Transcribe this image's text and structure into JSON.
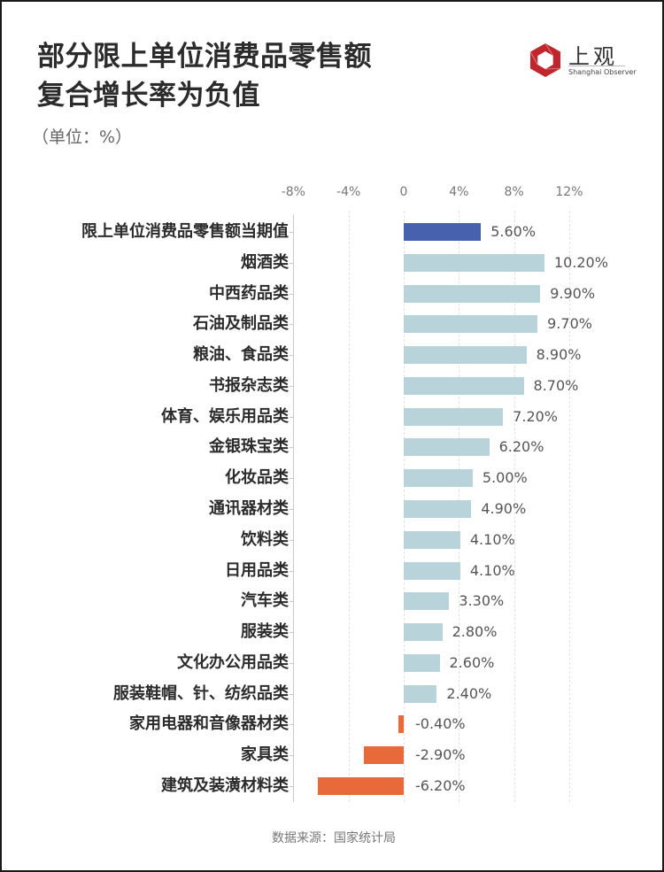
{
  "header": {
    "title_line1": "部分限上单位消费品零售额",
    "title_line2": "复合增长率为负值",
    "unit": "（单位：%）"
  },
  "logo": {
    "name_cn": "上观",
    "name_en": "Shanghai Observer",
    "color": "#C0272D"
  },
  "footer": {
    "source": "数据来源：国家统计局"
  },
  "colors": {
    "highlight": "#4761AF",
    "positive": "#B9D3DA",
    "negative": "#E8693A"
  },
  "chart_data": {
    "type": "bar",
    "orientation": "horizontal",
    "title": "部分限上单位消费品零售额复合增长率为负值",
    "subtitle": "（单位：%）",
    "xlabel": "",
    "ylabel": "",
    "xlim": [
      -8,
      12
    ],
    "x_ticks": [
      "-8%",
      "-4%",
      "0",
      "4%",
      "8%",
      "12%"
    ],
    "x_tick_values": [
      -8,
      -4,
      0,
      4,
      8,
      12
    ],
    "grid": true,
    "legend": null,
    "source": "数据来源：国家统计局",
    "categories": [
      "限上单位消费品零售额当期值",
      "烟酒类",
      "中西药品类",
      "石油及制品类",
      "粮油、食品类",
      "书报杂志类",
      "体育、娱乐用品类",
      "金银珠宝类",
      "化妆品类",
      "通讯器材类",
      "饮料类",
      "日用品类",
      "汽车类",
      "服装类",
      "文化办公用品类",
      "服装鞋帽、针、纺织品类",
      "家用电器和音像器材类",
      "家具类",
      "建筑及装潢材料类"
    ],
    "values": [
      5.6,
      10.2,
      9.9,
      9.7,
      8.9,
      8.7,
      7.2,
      6.2,
      5.0,
      4.9,
      4.1,
      4.1,
      3.3,
      2.8,
      2.6,
      2.4,
      -0.4,
      -2.9,
      -6.2
    ],
    "value_labels": [
      "5.60%",
      "10.20%",
      "9.90%",
      "9.70%",
      "8.90%",
      "8.70%",
      "7.20%",
      "6.20%",
      "5.00%",
      "4.90%",
      "4.10%",
      "4.10%",
      "3.30%",
      "2.80%",
      "2.60%",
      "2.40%",
      "-0.40%",
      "-2.90%",
      "-6.20%"
    ]
  }
}
